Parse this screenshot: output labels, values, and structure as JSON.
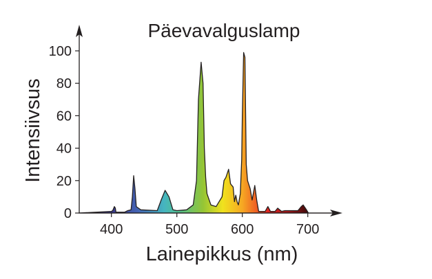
{
  "chart_data": {
    "type": "area",
    "title": "Päevavalguslamp",
    "xlabel": "Lainepikkus (nm)",
    "ylabel": "Intensiivsus",
    "xlim": [
      350,
      750
    ],
    "ylim": [
      0,
      100
    ],
    "x_ticks": [
      400,
      500,
      600,
      700
    ],
    "y_ticks": [
      0,
      20,
      40,
      60,
      80,
      100
    ],
    "grid": false,
    "fill": "spectral gradient (wavelength colours)",
    "gradient_stops": [
      {
        "nm": 400,
        "color": "#3b3a8c"
      },
      {
        "nm": 440,
        "color": "#4463b3"
      },
      {
        "nm": 480,
        "color": "#45b5c0"
      },
      {
        "nm": 505,
        "color": "#55c08a"
      },
      {
        "nm": 540,
        "color": "#95c535"
      },
      {
        "nm": 570,
        "color": "#f0e21e"
      },
      {
        "nm": 600,
        "color": "#f6a823"
      },
      {
        "nm": 620,
        "color": "#f06424"
      },
      {
        "nm": 640,
        "color": "#e0231f"
      },
      {
        "nm": 670,
        "color": "#a3191b"
      },
      {
        "nm": 700,
        "color": "#3f0a0a"
      }
    ],
    "points": [
      [
        350,
        0
      ],
      [
        400,
        1
      ],
      [
        402,
        1.5
      ],
      [
        404.5,
        4
      ],
      [
        406,
        3
      ],
      [
        407,
        0.5
      ],
      [
        420,
        0.5
      ],
      [
        425,
        1.5
      ],
      [
        430,
        2
      ],
      [
        432,
        10
      ],
      [
        434,
        23
      ],
      [
        436,
        15
      ],
      [
        438,
        4
      ],
      [
        445,
        2
      ],
      [
        470,
        1.5
      ],
      [
        476,
        8
      ],
      [
        482,
        14
      ],
      [
        488,
        10
      ],
      [
        494,
        2
      ],
      [
        500,
        1.5
      ],
      [
        515,
        2
      ],
      [
        525,
        5
      ],
      [
        530,
        20
      ],
      [
        533,
        70
      ],
      [
        537,
        93
      ],
      [
        540,
        80
      ],
      [
        542,
        40
      ],
      [
        544,
        22
      ],
      [
        546,
        12
      ],
      [
        552,
        5
      ],
      [
        560,
        4
      ],
      [
        566,
        8
      ],
      [
        569,
        10
      ],
      [
        572,
        20
      ],
      [
        575,
        22
      ],
      [
        579,
        27
      ],
      [
        582,
        18
      ],
      [
        586,
        16
      ],
      [
        588,
        7
      ],
      [
        590,
        11
      ],
      [
        592,
        7
      ],
      [
        594,
        5
      ],
      [
        597,
        12
      ],
      [
        599,
        33
      ],
      [
        600,
        60
      ],
      [
        602,
        99
      ],
      [
        604,
        96
      ],
      [
        606,
        30
      ],
      [
        608,
        20
      ],
      [
        612,
        15
      ],
      [
        615,
        8
      ],
      [
        619,
        17
      ],
      [
        622,
        8
      ],
      [
        625,
        1
      ],
      [
        635,
        1
      ],
      [
        639,
        4
      ],
      [
        643,
        1
      ],
      [
        650,
        1
      ],
      [
        654,
        3
      ],
      [
        660,
        1
      ],
      [
        665,
        1.5
      ],
      [
        685,
        1.5
      ],
      [
        690,
        4
      ],
      [
        693,
        5
      ],
      [
        698,
        2
      ],
      [
        701,
        0
      ],
      [
        740,
        0
      ]
    ]
  }
}
